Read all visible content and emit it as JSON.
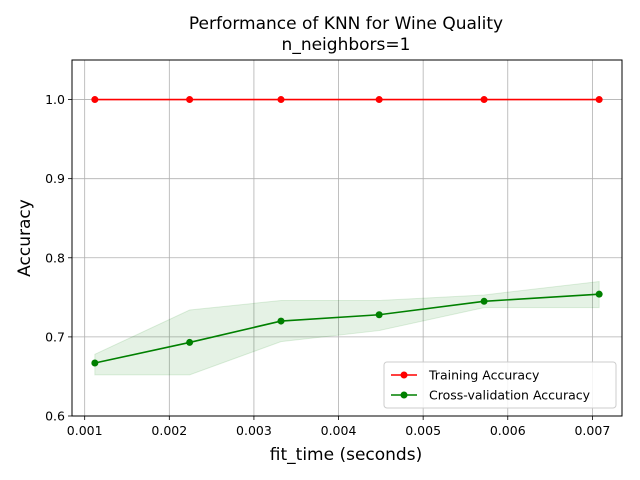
{
  "chart_data": {
    "type": "line",
    "title": "Performance of KNN for Wine Quality",
    "subtitle": "n_neighbors=1",
    "xlabel": "fit_time (seconds)",
    "ylabel": "Accuracy",
    "xlim": [
      0.00085,
      0.00735
    ],
    "ylim": [
      0.6,
      1.05
    ],
    "xticks": [
      "0.001",
      "0.002",
      "0.003",
      "0.004",
      "0.005",
      "0.006",
      "0.007"
    ],
    "yticks": [
      "0.6",
      "0.7",
      "0.8",
      "0.9",
      "1.0"
    ],
    "grid": true,
    "legend_position": "lower-right",
    "series": [
      {
        "name": "Training Accuracy",
        "color": "#ff0000",
        "x": [
          0.00112,
          0.00224,
          0.00332,
          0.00448,
          0.00572,
          0.00708
        ],
        "y": [
          1.0,
          1.0,
          1.0,
          1.0,
          1.0,
          1.0
        ],
        "band_low": [
          1.0,
          1.0,
          1.0,
          1.0,
          1.0,
          1.0
        ],
        "band_high": [
          1.0,
          1.0,
          1.0,
          1.0,
          1.0,
          1.0
        ]
      },
      {
        "name": "Cross-validation Accuracy",
        "color": "#008000",
        "x": [
          0.00112,
          0.00224,
          0.00332,
          0.00448,
          0.00572,
          0.00708
        ],
        "y": [
          0.667,
          0.693,
          0.72,
          0.728,
          0.745,
          0.754
        ],
        "band_low": [
          0.652,
          0.652,
          0.694,
          0.708,
          0.737,
          0.737
        ],
        "band_high": [
          0.678,
          0.734,
          0.746,
          0.746,
          0.753,
          0.77
        ]
      }
    ]
  }
}
